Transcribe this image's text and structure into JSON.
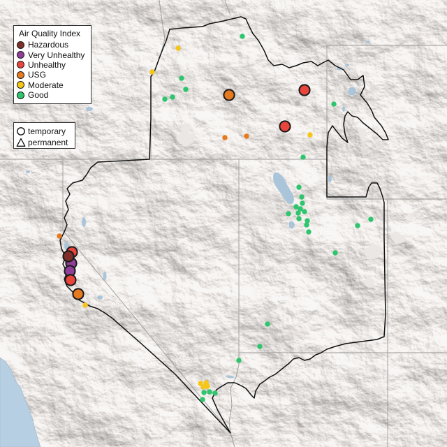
{
  "legend": {
    "title": "Air Quality Index",
    "items": [
      {
        "label": "Hazardous",
        "color": "#7e2f2b"
      },
      {
        "label": "Very Unhealthy",
        "color": "#8f3f97"
      },
      {
        "label": "Unhealthy",
        "color": "#e8453c"
      },
      {
        "label": "USG",
        "color": "#e57a1f"
      },
      {
        "label": "Moderate",
        "color": "#f5c518"
      },
      {
        "label": "Good",
        "color": "#2ec56e"
      }
    ]
  },
  "shape_legend": {
    "items": [
      {
        "label": "temporary",
        "icon": "circle-icon"
      },
      {
        "label": "permanent",
        "icon": "triangle-icon"
      }
    ]
  },
  "colors": {
    "no_data": "#b7b7b7",
    "marker_outline": "#1a1a1a",
    "water": "#b7cfe2",
    "region_boundary": "#111111",
    "state_border": "#9b9b9b"
  },
  "monitors": [
    {
      "aqi_category": 4
    },
    {
      "aqi_category": 4
    },
    {
      "aqi_category": 5
    },
    {
      "aqi_category": 5
    },
    {
      "aqi_category": 5
    },
    {
      "aqi_category": 5
    },
    {
      "aqi_category": 5
    },
    {
      "aqi_category": 3
    },
    {
      "aqi_category": 3
    },
    {
      "aqi_category": null
    },
    {
      "aqi_category": 5
    },
    {
      "aqi_category": 4
    },
    {
      "aqi_category": 5
    },
    {
      "aqi_category": 5
    },
    {
      "aqi_category": 5
    },
    {
      "aqi_category": 5
    },
    {
      "aqi_category": 5
    },
    {
      "aqi_category": 5
    },
    {
      "aqi_category": 5
    },
    {
      "aqi_category": 5
    },
    {
      "aqi_category": 5
    },
    {
      "aqi_category": 5
    },
    {
      "aqi_category": 5
    },
    {
      "aqi_category": 5
    },
    {
      "aqi_category": 5
    },
    {
      "aqi_category": 5
    },
    {
      "aqi_category": 5
    },
    {
      "aqi_category": 5
    },
    {
      "aqi_category": 5
    },
    {
      "aqi_category": 5
    },
    {
      "aqi_category": 5
    },
    {
      "aqi_category": 3
    },
    {
      "aqi_category": 4
    },
    {
      "aqi_category": 5
    },
    {
      "aqi_category": 5
    },
    {
      "aqi_category": 5
    },
    {
      "aqi_category": 5
    },
    {
      "aqi_category": 4
    },
    {
      "aqi_category": 4
    },
    {
      "aqi_category": 4
    },
    {
      "aqi_category": 4
    },
    {
      "aqi_category": 3
    },
    {
      "aqi_category": 2
    },
    {
      "aqi_category": 2
    },
    {
      "aqi_category": 2
    },
    {
      "aqi_category": 1
    },
    {
      "aqi_category": 0
    },
    {
      "aqi_category": 1
    },
    {
      "aqi_category": 2
    },
    {
      "aqi_category": 3
    }
  ]
}
